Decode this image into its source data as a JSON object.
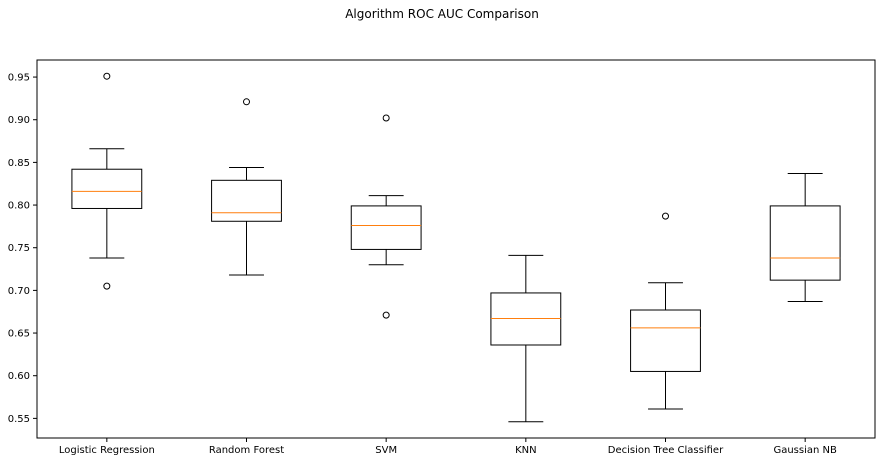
{
  "chart_data": {
    "type": "box",
    "title": "Algorithm ROC AUC Comparison",
    "xlabel": "",
    "ylabel": "",
    "ylim": [
      0.527,
      0.97
    ],
    "yticks": [
      0.55,
      0.6,
      0.65,
      0.7,
      0.75,
      0.8,
      0.85,
      0.9,
      0.95
    ],
    "ytick_labels": [
      "0.55",
      "0.60",
      "0.65",
      "0.70",
      "0.75",
      "0.80",
      "0.85",
      "0.90",
      "0.95"
    ],
    "grid": false,
    "colors": {
      "box": "#000000",
      "median": "#ff7f0e",
      "background": "#ffffff"
    },
    "categories": [
      "Logistic Regression",
      "Random Forest",
      "SVM",
      "KNN",
      "Decision Tree Classifier",
      "Gaussian NB"
    ],
    "boxes": [
      {
        "whisker_low": 0.738,
        "q1": 0.796,
        "median": 0.816,
        "q3": 0.842,
        "whisker_high": 0.866,
        "fliers": [
          0.951,
          0.705
        ]
      },
      {
        "whisker_low": 0.718,
        "q1": 0.781,
        "median": 0.791,
        "q3": 0.829,
        "whisker_high": 0.844,
        "fliers": [
          0.921
        ]
      },
      {
        "whisker_low": 0.73,
        "q1": 0.748,
        "median": 0.776,
        "q3": 0.799,
        "whisker_high": 0.811,
        "fliers": [
          0.902,
          0.671
        ]
      },
      {
        "whisker_low": 0.546,
        "q1": 0.636,
        "median": 0.667,
        "q3": 0.697,
        "whisker_high": 0.741,
        "fliers": []
      },
      {
        "whisker_low": 0.561,
        "q1": 0.605,
        "median": 0.656,
        "q3": 0.677,
        "whisker_high": 0.709,
        "fliers": [
          0.787
        ]
      },
      {
        "whisker_low": 0.687,
        "q1": 0.712,
        "median": 0.738,
        "q3": 0.799,
        "whisker_high": 0.837,
        "fliers": []
      }
    ]
  }
}
